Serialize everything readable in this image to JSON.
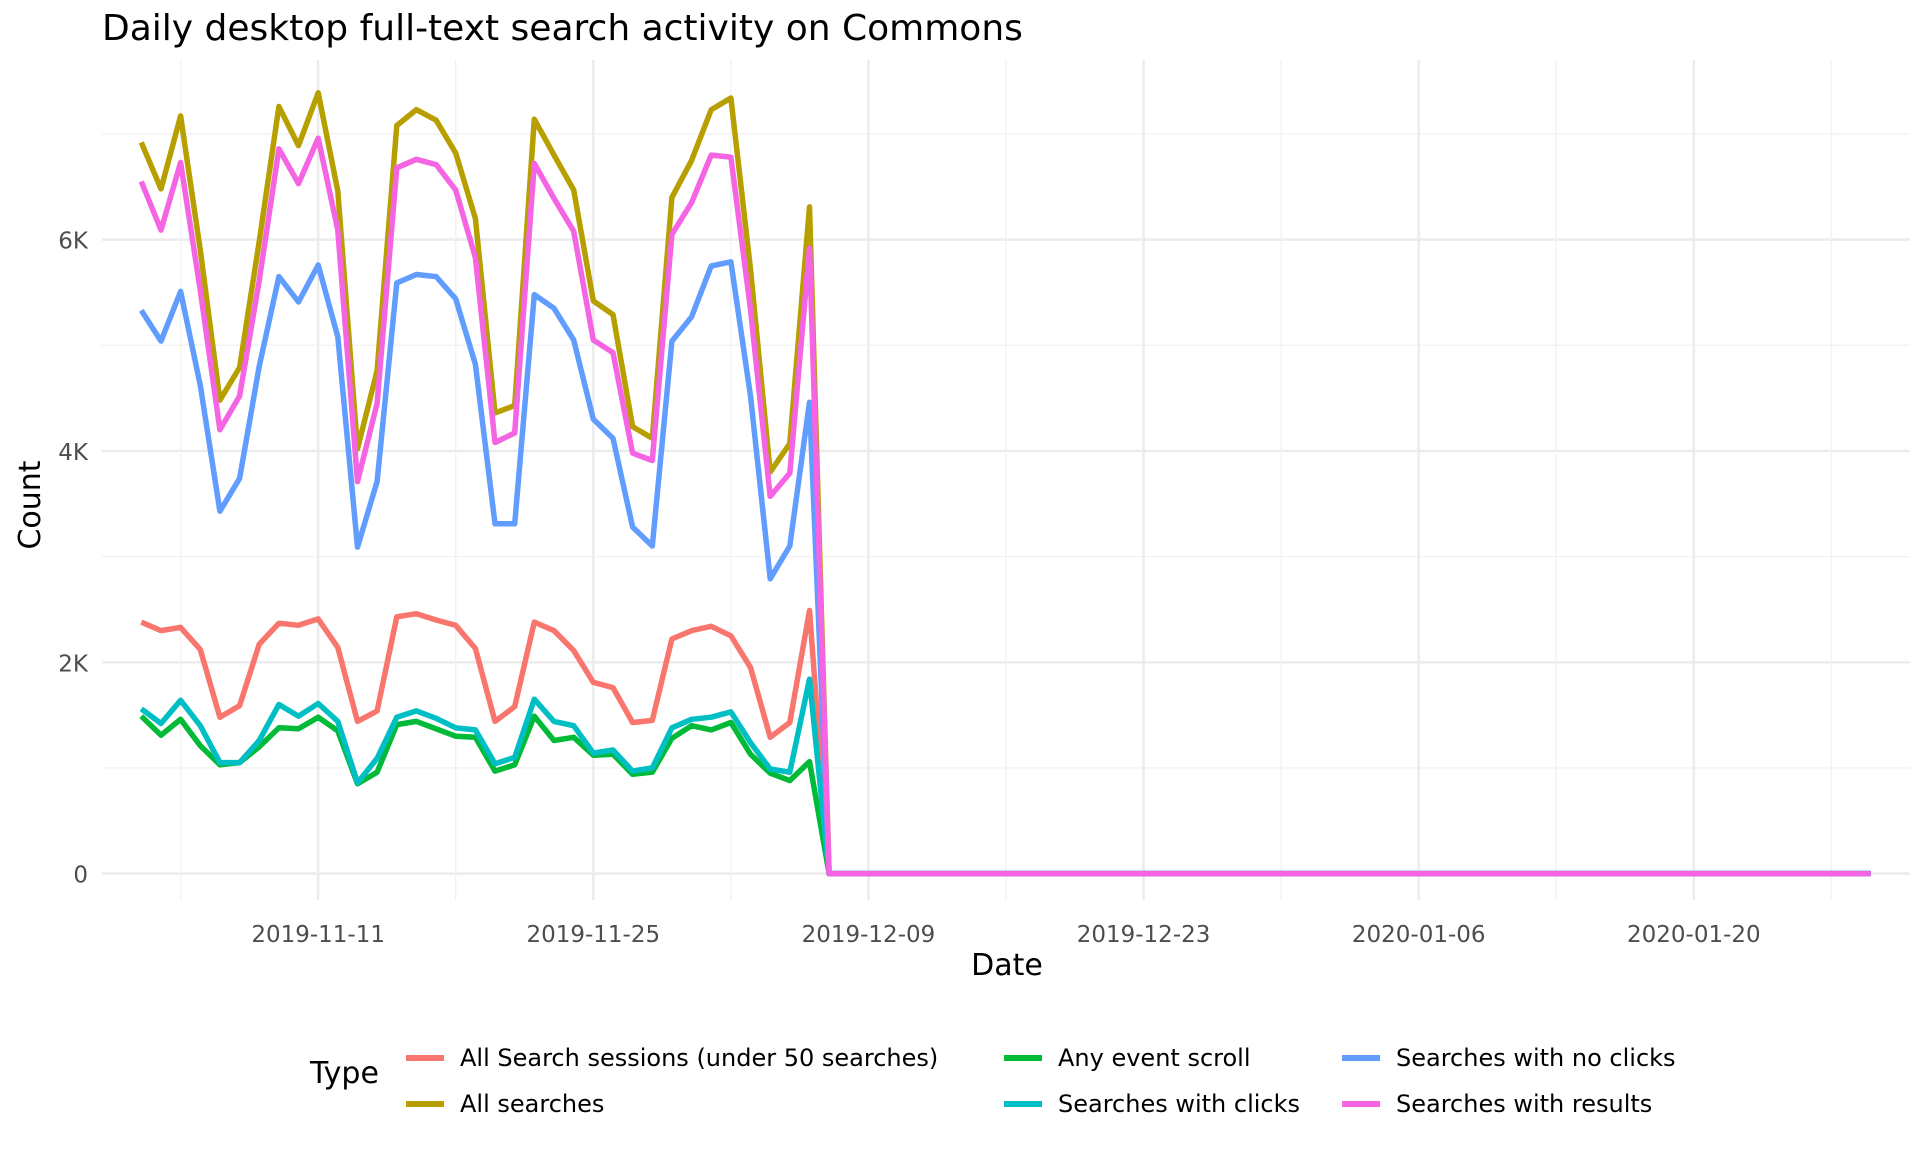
{
  "chart_data": {
    "type": "line",
    "title": "Daily desktop full-text search activity on Commons",
    "xlabel": "Date",
    "ylabel": "Count",
    "x_start": "2019-11-02",
    "x_end": "2020-01-29",
    "xlim": [
      "2019-10-31",
      "2020-01-31"
    ],
    "ylim": [
      -250,
      7700
    ],
    "yticks": [
      0,
      2000,
      4000,
      6000
    ],
    "ytick_labels": [
      "0",
      "2K",
      "4K",
      "6K"
    ],
    "xticks": [
      "2019-11-11",
      "2019-11-25",
      "2019-12-09",
      "2019-12-23",
      "2020-01-06",
      "2020-01-20"
    ],
    "grid": true,
    "legend_position": "bottom",
    "legend_title": "Type",
    "series": [
      {
        "name": "All Search sessions (under 50 searches)",
        "color": "#F8766D",
        "values": [
          2380,
          2300,
          2330,
          2120,
          1480,
          1590,
          2170,
          2370,
          2350,
          2410,
          2140,
          1440,
          1540,
          2430,
          2460,
          2400,
          2350,
          2130,
          1440,
          1580,
          2380,
          2300,
          2110,
          1810,
          1760,
          1430,
          1450,
          2220,
          2300,
          2340,
          2250,
          1950,
          1290,
          1430,
          2490,
          0
        ]
      },
      {
        "name": "All searches",
        "color": "#B79F00",
        "values": [
          6920,
          6480,
          7170,
          5900,
          4480,
          4790,
          5980,
          7260,
          6890,
          7390,
          6460,
          4020,
          4760,
          7080,
          7230,
          7130,
          6820,
          6200,
          4360,
          4430,
          7140,
          6800,
          6470,
          5420,
          5290,
          4230,
          4120,
          6400,
          6750,
          7230,
          7340,
          5720,
          3800,
          4070,
          6310,
          0
        ]
      },
      {
        "name": "Any event scroll",
        "color": "#00BA38",
        "values": [
          1490,
          1310,
          1460,
          1210,
          1030,
          1050,
          1200,
          1380,
          1370,
          1480,
          1350,
          850,
          960,
          1410,
          1440,
          1370,
          1300,
          1290,
          970,
          1030,
          1490,
          1260,
          1290,
          1120,
          1130,
          940,
          960,
          1280,
          1400,
          1360,
          1430,
          1130,
          950,
          880,
          1060,
          0
        ]
      },
      {
        "name": "Searches with clicks",
        "color": "#00BFC4",
        "values": [
          1560,
          1420,
          1640,
          1400,
          1050,
          1050,
          1260,
          1600,
          1490,
          1610,
          1440,
          860,
          1090,
          1480,
          1540,
          1470,
          1380,
          1360,
          1040,
          1100,
          1650,
          1440,
          1400,
          1140,
          1170,
          970,
          1000,
          1380,
          1460,
          1480,
          1530,
          1240,
          990,
          960,
          1840,
          0
        ]
      },
      {
        "name": "Searches with no clicks",
        "color": "#619CFF",
        "values": [
          5330,
          5040,
          5510,
          4620,
          3430,
          3740,
          4800,
          5650,
          5410,
          5760,
          5080,
          3090,
          3710,
          5590,
          5670,
          5650,
          5440,
          4820,
          3310,
          3310,
          5480,
          5350,
          5050,
          4300,
          4120,
          3280,
          3100,
          5040,
          5270,
          5750,
          5790,
          4520,
          2790,
          3100,
          4460,
          0
        ]
      },
      {
        "name": "Searches with results",
        "color": "#F564E3",
        "values": [
          6550,
          6090,
          6730,
          5520,
          4200,
          4520,
          5610,
          6860,
          6530,
          6960,
          6090,
          3710,
          4450,
          6680,
          6760,
          6710,
          6470,
          5830,
          4080,
          4170,
          6720,
          6390,
          6080,
          5050,
          4930,
          3980,
          3910,
          6050,
          6350,
          6800,
          6780,
          5340,
          3570,
          3790,
          5920,
          0
        ]
      }
    ]
  }
}
